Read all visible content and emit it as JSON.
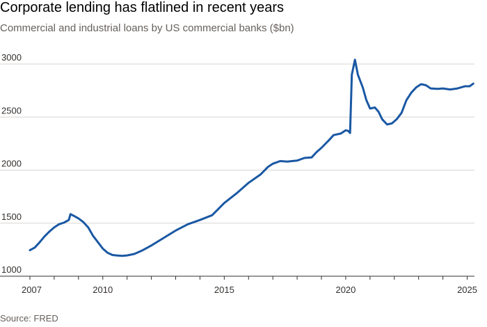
{
  "title": "Corporate lending has flatlined in recent years",
  "subtitle": "Commercial and industrial loans by US commercial banks ($bn)",
  "source": "Source: FRED",
  "chart_data": {
    "type": "line",
    "title": "Corporate lending has flatlined in recent years",
    "subtitle": "Commercial and industrial loans by US commercial banks ($bn)",
    "xlabel": "",
    "ylabel": "",
    "xlim": [
      2007.0,
      2025.3
    ],
    "ylim": [
      1000,
      3000
    ],
    "x_ticks": [
      2007,
      2010,
      2015,
      2020,
      2025
    ],
    "y_ticks": [
      1000,
      1500,
      2000,
      2500,
      3000
    ],
    "grid": "horizontal",
    "line_color": "#1a58a3",
    "series": [
      {
        "points": [
          [
            2007.0,
            1245
          ],
          [
            2007.2,
            1270
          ],
          [
            2007.4,
            1320
          ],
          [
            2007.6,
            1375
          ],
          [
            2007.8,
            1420
          ],
          [
            2008.0,
            1460
          ],
          [
            2008.2,
            1490
          ],
          [
            2008.4,
            1505
          ],
          [
            2008.6,
            1530
          ],
          [
            2008.67,
            1585
          ],
          [
            2008.8,
            1570
          ],
          [
            2009.0,
            1545
          ],
          [
            2009.2,
            1510
          ],
          [
            2009.4,
            1460
          ],
          [
            2009.6,
            1380
          ],
          [
            2009.8,
            1320
          ],
          [
            2010.0,
            1260
          ],
          [
            2010.2,
            1220
          ],
          [
            2010.4,
            1200
          ],
          [
            2010.6,
            1195
          ],
          [
            2010.8,
            1192
          ],
          [
            2011.0,
            1196
          ],
          [
            2011.3,
            1210
          ],
          [
            2011.6,
            1240
          ],
          [
            2012.0,
            1290
          ],
          [
            2012.5,
            1360
          ],
          [
            2013.0,
            1430
          ],
          [
            2013.5,
            1490
          ],
          [
            2014.0,
            1530
          ],
          [
            2014.5,
            1575
          ],
          [
            2015.0,
            1690
          ],
          [
            2015.5,
            1780
          ],
          [
            2016.0,
            1880
          ],
          [
            2016.5,
            1960
          ],
          [
            2016.8,
            2030
          ],
          [
            2017.0,
            2060
          ],
          [
            2017.3,
            2085
          ],
          [
            2017.6,
            2080
          ],
          [
            2018.0,
            2090
          ],
          [
            2018.3,
            2115
          ],
          [
            2018.6,
            2120
          ],
          [
            2018.8,
            2170
          ],
          [
            2019.0,
            2210
          ],
          [
            2019.3,
            2280
          ],
          [
            2019.5,
            2330
          ],
          [
            2019.8,
            2345
          ],
          [
            2020.0,
            2375
          ],
          [
            2020.1,
            2370
          ],
          [
            2020.18,
            2350
          ],
          [
            2020.25,
            2900
          ],
          [
            2020.38,
            3040
          ],
          [
            2020.5,
            2900
          ],
          [
            2020.7,
            2780
          ],
          [
            2020.85,
            2660
          ],
          [
            2021.0,
            2580
          ],
          [
            2021.2,
            2590
          ],
          [
            2021.35,
            2550
          ],
          [
            2021.5,
            2480
          ],
          [
            2021.7,
            2430
          ],
          [
            2021.9,
            2440
          ],
          [
            2022.1,
            2480
          ],
          [
            2022.3,
            2540
          ],
          [
            2022.5,
            2660
          ],
          [
            2022.7,
            2730
          ],
          [
            2022.9,
            2780
          ],
          [
            2023.1,
            2810
          ],
          [
            2023.3,
            2800
          ],
          [
            2023.5,
            2770
          ],
          [
            2023.8,
            2765
          ],
          [
            2024.0,
            2770
          ],
          [
            2024.3,
            2760
          ],
          [
            2024.6,
            2770
          ],
          [
            2024.9,
            2790
          ],
          [
            2025.1,
            2790
          ],
          [
            2025.25,
            2815
          ]
        ]
      }
    ]
  }
}
